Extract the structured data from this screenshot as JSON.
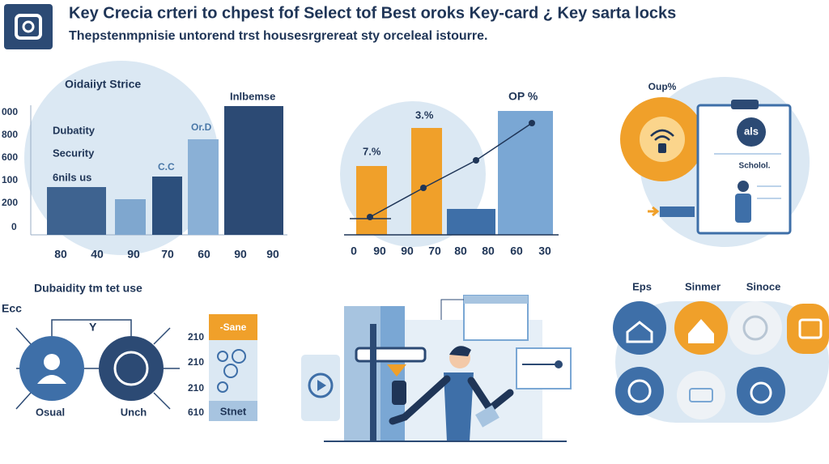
{
  "header": {
    "title": "Key Crecia crteri to chpest fof Select tof Best oroks Key-card ¿ Key sarta locks",
    "subtitle": "Thepstenmpnisie untorend trst housesrgrereat sty orceleal istourre."
  },
  "panel1": {
    "title": "Oidaiiyt Strice",
    "y_labels": [
      "000",
      "800",
      "600",
      "100",
      "200",
      "0"
    ],
    "labels": [
      "Dubatity",
      "Security",
      "6nils us"
    ],
    "bar_labels": [
      "C.C",
      "Or.D",
      "Inlbemse"
    ],
    "x_labels": [
      "80",
      "40",
      "90",
      "70",
      "60",
      "90",
      "90"
    ]
  },
  "panel2": {
    "bar_labels": [
      "7.%",
      "3.%",
      "OP %"
    ],
    "x_labels": [
      "0",
      "90",
      "90",
      "70",
      "80",
      "80",
      "60",
      "30"
    ]
  },
  "panel3": {
    "title": "Oup%",
    "badge": "als",
    "caption": "Scholol."
  },
  "panel4": {
    "title": "Dubaidity tm tet use",
    "corner": "Ecc",
    "mid": "Y",
    "circle_labels": [
      "Osual",
      "Unch"
    ],
    "row_labels": [
      "210",
      "210",
      "210",
      "610"
    ],
    "box_top": "-Sane",
    "box_bottom": "Stnet"
  },
  "panel6": {
    "labels": [
      "Eps",
      "Sinmer",
      "Sinoce"
    ]
  }
}
